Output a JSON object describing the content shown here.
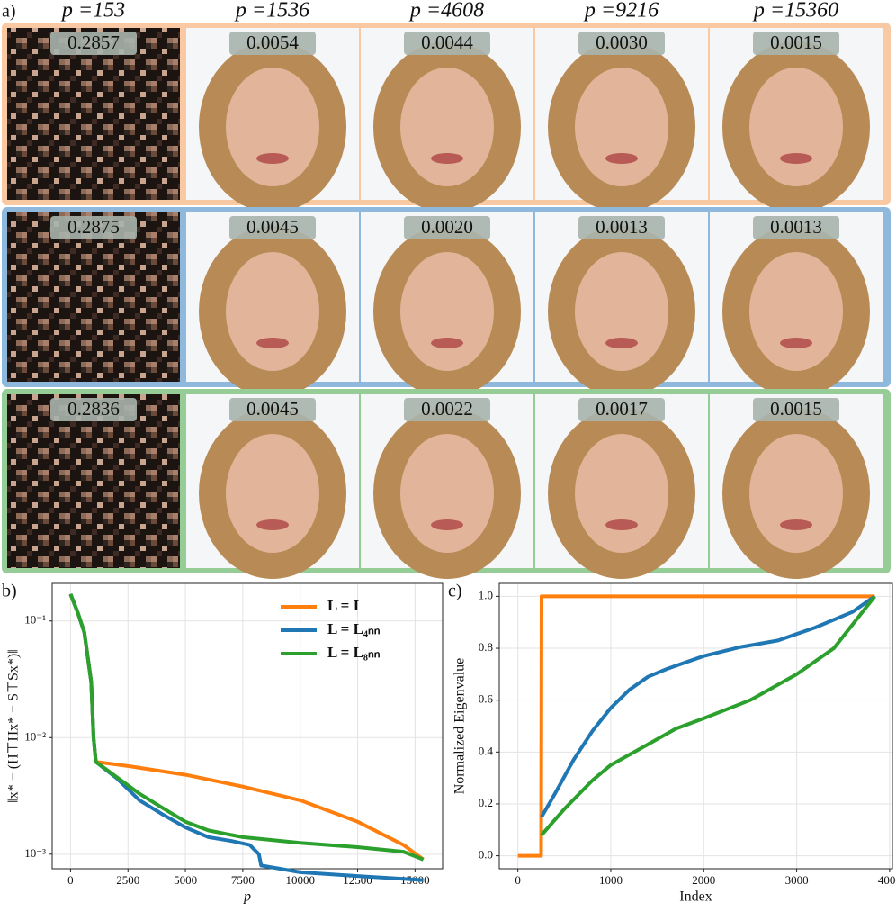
{
  "panels": {
    "a": "a)",
    "b": "b)",
    "c": "c)"
  },
  "grid": {
    "columns": [
      "p =153",
      "p =1536",
      "p =4608",
      "p =9216",
      "p =15360"
    ],
    "rows": [
      {
        "errors": [
          "0.2857",
          "0.0054",
          "0.0044",
          "0.0030",
          "0.0015"
        ]
      },
      {
        "errors": [
          "0.2875",
          "0.0045",
          "0.0020",
          "0.0013",
          "0.0013"
        ]
      },
      {
        "errors": [
          "0.2836",
          "0.0045",
          "0.0022",
          "0.0017",
          "0.0015"
        ]
      }
    ]
  },
  "chart_data": [
    {
      "type": "line",
      "log_y": true,
      "grid": true,
      "legend": "upper right",
      "xlabel": "p",
      "ylabel": "‖x* − (H⊤Hx* + S⊤Sx*)‖",
      "xlim": [
        -800,
        16200
      ],
      "xticks": [
        0,
        2500,
        5000,
        7500,
        10000,
        12500,
        15000
      ],
      "ylim": [
        0.00075,
        0.21
      ],
      "yticks": [
        {
          "value": 0.001,
          "label": "10⁻³"
        },
        {
          "value": 0.01,
          "label": "10⁻²"
        },
        {
          "value": 0.1,
          "label": "10⁻¹"
        }
      ],
      "series": [
        {
          "name": "L = I",
          "color": "#ff7f0e",
          "x": [
            0,
            300,
            600,
            900,
            1000,
            1100,
            2500,
            5000,
            7500,
            10000,
            12500,
            14500,
            15360
          ],
          "values": [
            0.17,
            0.12,
            0.08,
            0.03,
            0.01,
            0.0062,
            0.0057,
            0.0048,
            0.0038,
            0.0029,
            0.0019,
            0.0012,
            0.0009
          ]
        },
        {
          "name": "L = L₄ₙₙ",
          "color": "#1f77b4",
          "x": [
            0,
            300,
            600,
            900,
            1000,
            1100,
            2000,
            3000,
            4000,
            5000,
            6000,
            7000,
            7800,
            8200,
            8300,
            10000,
            12500,
            15360
          ],
          "values": [
            0.17,
            0.12,
            0.08,
            0.03,
            0.01,
            0.0062,
            0.0045,
            0.0029,
            0.0022,
            0.0017,
            0.0014,
            0.0013,
            0.0012,
            0.001,
            0.0008,
            0.0007,
            0.00065,
            0.0006
          ]
        },
        {
          "name": "L = L₈ₙₙ",
          "color": "#2ca02c",
          "x": [
            0,
            300,
            600,
            900,
            1000,
            1100,
            2000,
            3000,
            4000,
            5000,
            6000,
            7500,
            10000,
            12500,
            14500,
            15360
          ],
          "values": [
            0.17,
            0.12,
            0.08,
            0.03,
            0.01,
            0.0062,
            0.0046,
            0.0033,
            0.0025,
            0.0019,
            0.0016,
            0.0014,
            0.00125,
            0.00115,
            0.00105,
            0.0009
          ]
        }
      ]
    },
    {
      "type": "line",
      "log_y": false,
      "grid": true,
      "xlabel": "Index",
      "ylabel": "Normalized Eigenvalue",
      "xlim": [
        -200,
        4030
      ],
      "xticks": [
        0,
        1000,
        2000,
        3000,
        4000
      ],
      "ylim": [
        -0.05,
        1.05
      ],
      "yticks": [
        {
          "value": 0,
          "label": "0.0"
        },
        0.2,
        0.4,
        0.6,
        0.8,
        {
          "value": 1,
          "label": "1.0"
        }
      ],
      "series": [
        {
          "name": "L = I",
          "color": "#ff7f0e",
          "x": [
            0,
            250,
            255,
            3840
          ],
          "values": [
            0,
            0,
            1,
            1
          ]
        },
        {
          "name": "L = L₄ₙₙ",
          "color": "#1f77b4",
          "x": [
            255,
            400,
            600,
            800,
            1000,
            1200,
            1400,
            1600,
            2000,
            2400,
            2800,
            3200,
            3600,
            3840
          ],
          "values": [
            0.15,
            0.24,
            0.37,
            0.48,
            0.57,
            0.64,
            0.69,
            0.72,
            0.77,
            0.805,
            0.83,
            0.88,
            0.94,
            1.0
          ]
        },
        {
          "name": "L = L₈ₙₙ",
          "color": "#2ca02c",
          "x": [
            255,
            500,
            800,
            1000,
            1400,
            1700,
            2000,
            2500,
            3000,
            3400,
            3840
          ],
          "values": [
            0.08,
            0.18,
            0.29,
            0.35,
            0.43,
            0.49,
            0.53,
            0.6,
            0.7,
            0.8,
            1.0
          ]
        }
      ]
    }
  ]
}
